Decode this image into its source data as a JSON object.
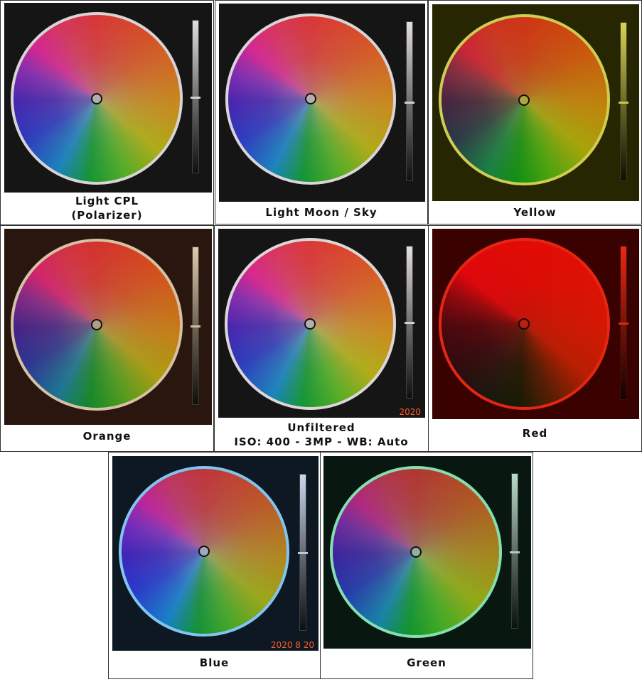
{
  "panels": [
    {
      "caption": [
        "Light CPL",
        "(Polarizer)"
      ]
    },
    {
      "caption": [
        "Light Moon / Sky"
      ]
    },
    {
      "caption": [
        "Yellow"
      ]
    },
    {
      "caption": [
        "Orange"
      ]
    },
    {
      "caption": [
        "Unfiltered",
        "ISO: 400 - 3MP - WB: Auto"
      ],
      "stamp": "2020"
    },
    {
      "caption": [
        "Red"
      ]
    },
    {
      "caption": [
        "Blue"
      ],
      "stamp": "2020 8 20"
    },
    {
      "caption": [
        "Green"
      ]
    }
  ]
}
